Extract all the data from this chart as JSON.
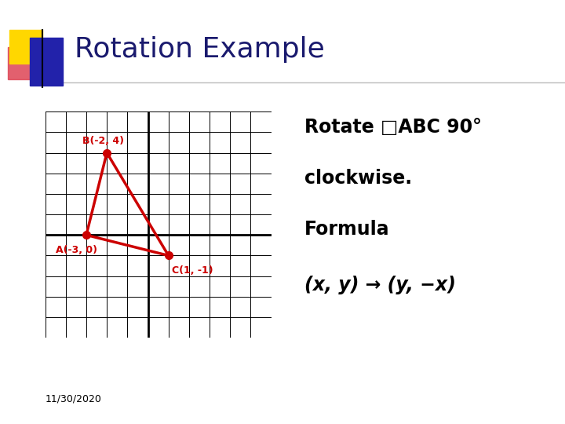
{
  "title": "Rotation Example",
  "title_fontsize": 26,
  "title_color": "#1a1a6e",
  "background_color": "#ffffff",
  "grid_xlim": [
    -5,
    6
  ],
  "grid_ylim": [
    -5,
    6
  ],
  "triangle_points": [
    [
      -3,
      0
    ],
    [
      -2,
      4
    ],
    [
      1,
      -1
    ]
  ],
  "triangle_labels": [
    "A(-3, 0)",
    "B(-2, 4)",
    "C(1, -1)"
  ],
  "triangle_color": "#cc0000",
  "point_size": 7,
  "rotate_line1": "Rotate □ABC 90°",
  "rotate_line2": "clockwise.",
  "formula_label": "Formula",
  "formula_expr": "(x, y) → (y, −x)",
  "date_text": "11/30/2020",
  "date_fontsize": 9,
  "text_fontsize": 17,
  "formula_fontsize": 17,
  "header_yellow": "#FFD700",
  "header_red": "#dd3333",
  "header_blue": "#2222aa",
  "header_line_color": "#aaaaaa"
}
